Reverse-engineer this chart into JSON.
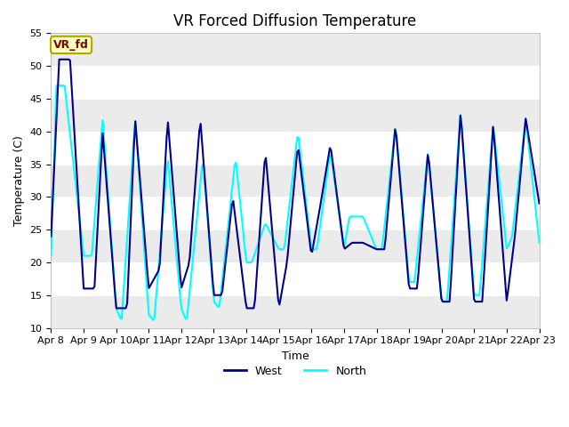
{
  "title": "VR Forced Diffusion Temperature",
  "xlabel": "Time",
  "ylabel": "Temperature (C)",
  "ylim": [
    10,
    55
  ],
  "yticks": [
    10,
    15,
    20,
    25,
    30,
    35,
    40,
    45,
    50,
    55
  ],
  "xtick_labels": [
    "Apr 8",
    "Apr 9",
    "Apr 10",
    "Apr 11",
    "Apr 12",
    "Apr 13",
    "Apr 14",
    "Apr 15",
    "Apr 16",
    "Apr 17",
    "Apr 18",
    "Apr 19",
    "Apr 20",
    "Apr 21",
    "Apr 22",
    "Apr 23"
  ],
  "west_color": "#00008B",
  "north_color": "#00FFFF",
  "fig_bg_color": "#FFFFFF",
  "plot_bg_color": "#FFFFFF",
  "band_color_light": "#EBEBEB",
  "annotation_text": "VR_fd",
  "annotation_bg": "#FFFFC0",
  "annotation_edge": "#AAAA00",
  "annotation_text_color": "#880000",
  "title_fontsize": 12,
  "axis_fontsize": 9,
  "tick_fontsize": 8,
  "west_lw": 1.5,
  "north_lw": 1.5,
  "n_days": 15,
  "n_points": 360,
  "west_key_t": [
    0,
    6,
    14,
    24,
    32,
    38,
    48,
    56,
    62,
    72,
    80,
    86,
    96,
    102,
    110,
    120,
    126,
    134,
    144,
    150,
    158,
    168,
    174,
    182,
    192,
    198,
    206,
    216,
    222,
    230,
    240,
    246,
    254,
    264,
    270,
    278,
    288,
    294,
    302,
    312,
    318,
    326,
    336,
    342,
    350,
    360
  ],
  "west_key_v": [
    24,
    51,
    51,
    16,
    16,
    40,
    13,
    13,
    42,
    16,
    19,
    42,
    16,
    20,
    42,
    15,
    15,
    30,
    13,
    13,
    37,
    13,
    20,
    38,
    21,
    28,
    38,
    22,
    23,
    23,
    22,
    22,
    41,
    16,
    16,
    37,
    14,
    14,
    43,
    14,
    14,
    41,
    14,
    24,
    42,
    29
  ],
  "north_key_t": [
    0,
    4,
    10,
    24,
    30,
    38,
    48,
    52,
    62,
    72,
    76,
    86,
    96,
    100,
    112,
    120,
    124,
    136,
    144,
    148,
    158,
    168,
    172,
    182,
    192,
    196,
    206,
    216,
    220,
    230,
    240,
    244,
    254,
    264,
    268,
    278,
    288,
    292,
    302,
    312,
    316,
    326,
    336,
    340,
    350,
    360
  ],
  "north_key_v": [
    21,
    47,
    47,
    21,
    21,
    42,
    13,
    11,
    42,
    12,
    11,
    36,
    13,
    11,
    36,
    14,
    13,
    36,
    20,
    20,
    26,
    22,
    22,
    40,
    22,
    22,
    37,
    22,
    27,
    27,
    22,
    22,
    41,
    17,
    17,
    37,
    14,
    14,
    43,
    15,
    15,
    41,
    22,
    24,
    42,
    23
  ]
}
